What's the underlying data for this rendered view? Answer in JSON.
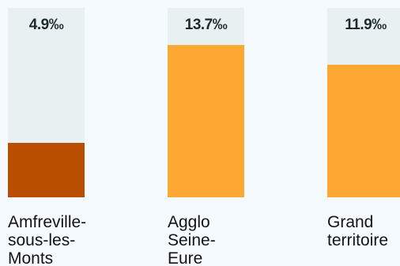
{
  "chart_data": {
    "type": "bar",
    "categories": [
      "Amfreville-\nsous-les-\nMonts",
      "Agglo\nSeine-\nEure",
      "Grand\nterritoire"
    ],
    "values": [
      4.9,
      13.7,
      11.9
    ],
    "value_labels": [
      "4.9‰",
      "13.7‰",
      "11.9‰"
    ],
    "unit": "‰",
    "ylim": [
      0,
      17
    ],
    "colors": {
      "highlight": "#b94e00",
      "bar": "#fca833",
      "track": "#e8f0f2"
    },
    "highlight_index": 0,
    "grid": false,
    "legend": "none"
  }
}
